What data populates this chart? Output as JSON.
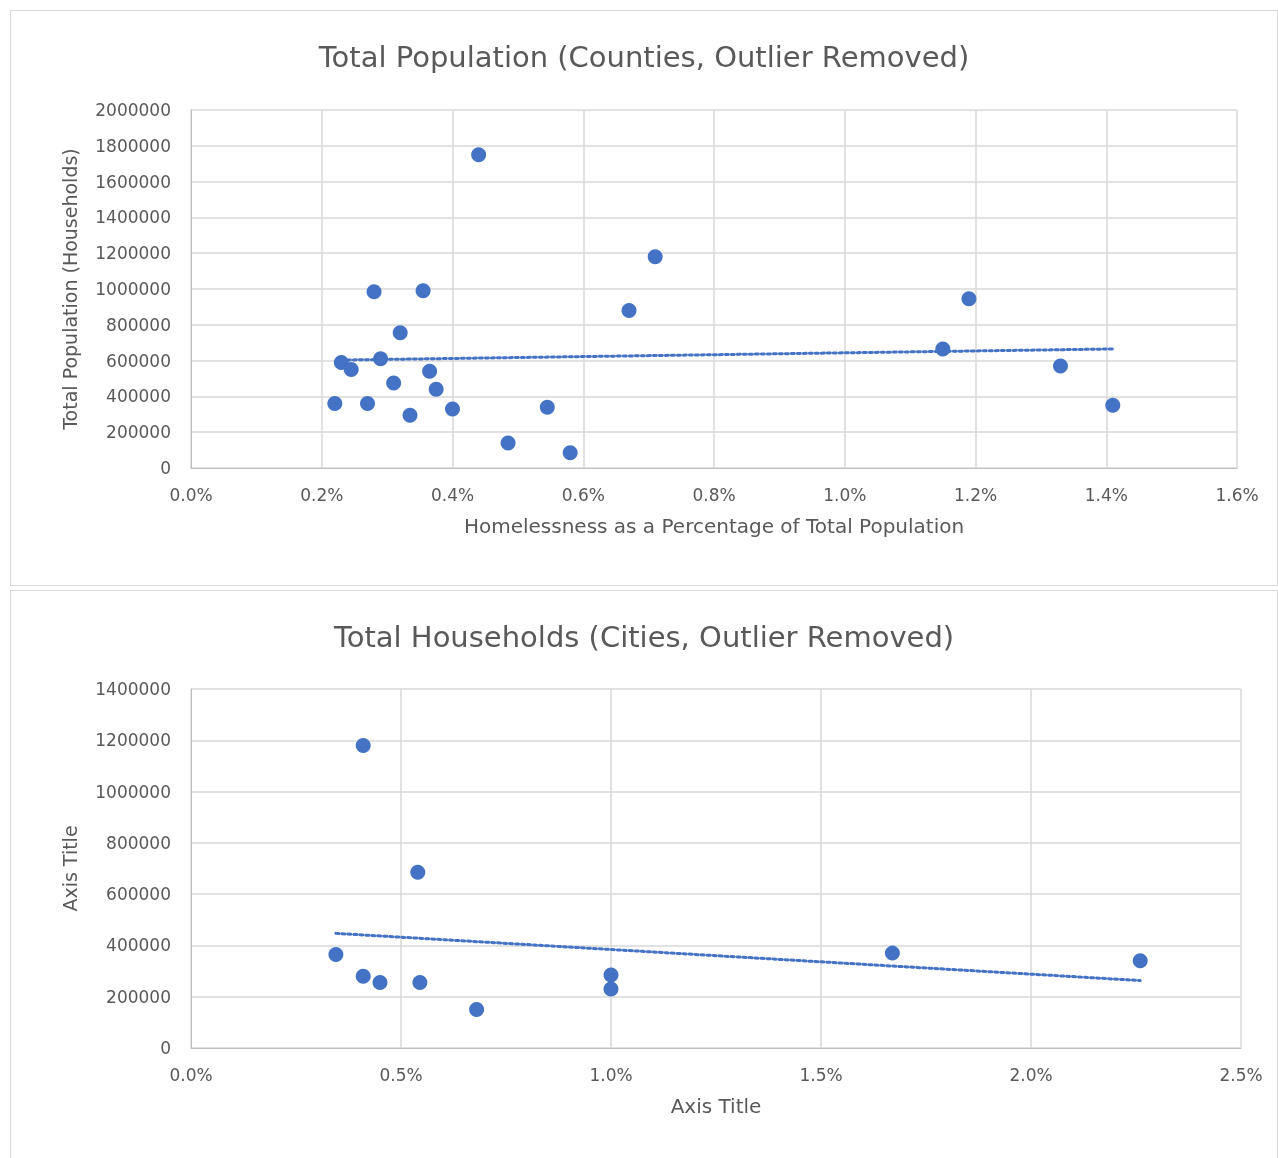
{
  "chart_data": [
    {
      "type": "scatter",
      "title": "Total Population (Counties, Outlier Removed)",
      "xlabel": "Homelessness as a Percentage of Total Population",
      "ylabel": "Total Population (Households)",
      "marker": "circle",
      "grid": true,
      "xlim": [
        0,
        1.6
      ],
      "xticks": [
        {
          "value": 0,
          "label": "0.0%"
        },
        {
          "value": 0.2,
          "label": "0.2%"
        },
        {
          "value": 0.4,
          "label": "0.4%"
        },
        {
          "value": 0.6,
          "label": "0.6%"
        },
        {
          "value": 0.8,
          "label": "0.8%"
        },
        {
          "value": 1.0,
          "label": "1.0%"
        },
        {
          "value": 1.2,
          "label": "1.2%"
        },
        {
          "value": 1.4,
          "label": "1.4%"
        },
        {
          "value": 1.6,
          "label": "1.6%"
        }
      ],
      "ylim": [
        0,
        2000000
      ],
      "yticks": [
        0,
        200000,
        400000,
        600000,
        800000,
        1000000,
        1200000,
        1400000,
        1600000,
        1800000,
        2000000
      ],
      "series": [
        {
          "color": "#4472c4",
          "x": [
            0.44,
            0.71,
            0.28,
            0.355,
            0.67,
            1.19,
            0.32,
            0.23,
            0.29,
            0.245,
            0.365,
            1.15,
            1.33,
            0.31,
            0.375,
            0.22,
            0.27,
            0.335,
            0.4,
            0.545,
            1.41,
            0.485,
            0.58
          ],
          "values": [
            1750000,
            1180000,
            985000,
            990000,
            880000,
            945000,
            755000,
            590000,
            610000,
            550000,
            540000,
            665000,
            570000,
            475000,
            440000,
            360000,
            360000,
            295000,
            330000,
            340000,
            350000,
            140000,
            85000
          ]
        },
        {
          "type": "line",
          "color": "#4472c4",
          "line_style": "dotted",
          "marker": "none",
          "x": [
            0.23,
            1.41
          ],
          "values": [
            603000,
            665000
          ]
        }
      ]
    },
    {
      "type": "scatter",
      "title": "Total Households (Cities, Outlier Removed)",
      "xlabel": "Axis Title",
      "ylabel": "Axis Title",
      "marker": "circle",
      "grid": true,
      "xlim": [
        0,
        2.5
      ],
      "xticks": [
        {
          "value": 0,
          "label": "0.0%"
        },
        {
          "value": 0.5,
          "label": "0.5%"
        },
        {
          "value": 1.0,
          "label": "1.0%"
        },
        {
          "value": 1.5,
          "label": "1.5%"
        },
        {
          "value": 2.0,
          "label": "2.0%"
        },
        {
          "value": 2.5,
          "label": "2.5%"
        }
      ],
      "ylim": [
        0,
        1400000
      ],
      "yticks": [
        0,
        200000,
        400000,
        600000,
        800000,
        1000000,
        1200000,
        1400000
      ],
      "series": [
        {
          "color": "#4472c4",
          "x": [
            0.41,
            0.54,
            0.345,
            0.41,
            0.45,
            0.545,
            0.68,
            1.0,
            1.0,
            1.67,
            2.26
          ],
          "values": [
            1180000,
            685000,
            365000,
            280000,
            255000,
            255000,
            150000,
            285000,
            230000,
            370000,
            340000
          ]
        },
        {
          "type": "line",
          "color": "#4472c4",
          "line_style": "dotted",
          "marker": "none",
          "x": [
            0.345,
            2.26
          ],
          "values": [
            447000,
            263000
          ]
        }
      ]
    }
  ]
}
